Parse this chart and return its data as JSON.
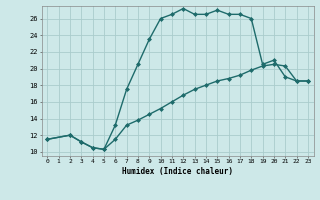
{
  "xlabel": "Humidex (Indice chaleur)",
  "xlim": [
    -0.5,
    23.5
  ],
  "ylim": [
    9.5,
    27.5
  ],
  "xticks": [
    0,
    1,
    2,
    3,
    4,
    5,
    6,
    7,
    8,
    9,
    10,
    11,
    12,
    13,
    14,
    15,
    16,
    17,
    18,
    19,
    20,
    21,
    22,
    23
  ],
  "yticks": [
    10,
    12,
    14,
    16,
    18,
    20,
    22,
    24,
    26
  ],
  "bg_color": "#cde8e8",
  "grid_color": "#aacccc",
  "line_color": "#1e6b6b",
  "line1_x": [
    0,
    2,
    3,
    4,
    5,
    6,
    7,
    8,
    9,
    10,
    11,
    12,
    13,
    14,
    15,
    16,
    17,
    18,
    19,
    20,
    21,
    22,
    23
  ],
  "line1_y": [
    11.5,
    12.0,
    11.2,
    10.5,
    10.3,
    13.2,
    17.5,
    20.5,
    23.5,
    26.0,
    26.5,
    27.2,
    26.5,
    26.5,
    27.0,
    26.5,
    26.5,
    26.0,
    20.5,
    21.0,
    19.0,
    18.5,
    18.5
  ],
  "line2_x": [
    0,
    2,
    3,
    4,
    5,
    6,
    7,
    8,
    9,
    10,
    11,
    12,
    13,
    14,
    15,
    16,
    17,
    18,
    19,
    20,
    21,
    22,
    23
  ],
  "line2_y": [
    11.5,
    12.0,
    11.2,
    10.5,
    10.3,
    11.5,
    13.2,
    13.8,
    14.5,
    15.2,
    16.0,
    16.8,
    17.5,
    18.0,
    18.5,
    18.8,
    19.2,
    19.8,
    20.3,
    20.5,
    20.3,
    18.5,
    18.5
  ],
  "marker": "D",
  "markersize": 2.0,
  "linewidth": 1.0
}
